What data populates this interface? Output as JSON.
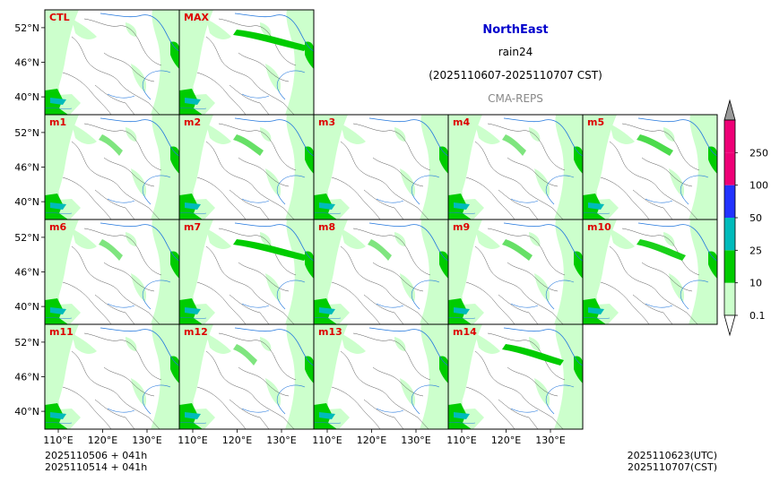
{
  "chart_data": {
    "type": "heatmap",
    "title": "NorthEast",
    "variable": "rain24",
    "period": "(2025110607-2025110707 CST)",
    "model": "CMA-REPS",
    "lat_ticks": [
      "52°N",
      "46°N",
      "40°N"
    ],
    "lon_ticks": [
      "110°E",
      "120°E",
      "130°E"
    ],
    "panels": [
      {
        "label": "CTL",
        "heavy": 0.0
      },
      {
        "label": "MAX",
        "heavy": 0.9
      },
      {
        "label": "m1",
        "heavy": 0.1
      },
      {
        "label": "m2",
        "heavy": 0.2
      },
      {
        "label": "m3",
        "heavy": 0.0
      },
      {
        "label": "m4",
        "heavy": 0.1
      },
      {
        "label": "m5",
        "heavy": 0.3
      },
      {
        "label": "m6",
        "heavy": 0.1
      },
      {
        "label": "m7",
        "heavy": 0.9
      },
      {
        "label": "m8",
        "heavy": 0.1
      },
      {
        "label": "m9",
        "heavy": 0.2
      },
      {
        "label": "m10",
        "heavy": 0.5
      },
      {
        "label": "m11",
        "heavy": 0.0
      },
      {
        "label": "m12",
        "heavy": 0.1
      },
      {
        "label": "m13",
        "heavy": 0.0
      },
      {
        "label": "m14",
        "heavy": 0.7
      }
    ],
    "colorbar": {
      "levels": [
        "0.1",
        "10",
        "25",
        "50",
        "100",
        "250"
      ],
      "colors": [
        "#ccffcc",
        "#00cc00",
        "#00bbbb",
        "#2233ff",
        "#ee0077",
        "#999999"
      ]
    },
    "footer": {
      "left_line1": "2025110506  +  041h",
      "left_line2": "2025110514  +  041h",
      "right_line1": "2025110623(UTC)",
      "right_line2": "2025110707(CST)"
    }
  },
  "colors": {
    "title": "#0000cc",
    "panel_label": "#dd0000",
    "model": "#888888",
    "land_light": "#ccffcc",
    "rain_green": "#00cc00",
    "river": "#2277dd",
    "border": "#555555"
  }
}
